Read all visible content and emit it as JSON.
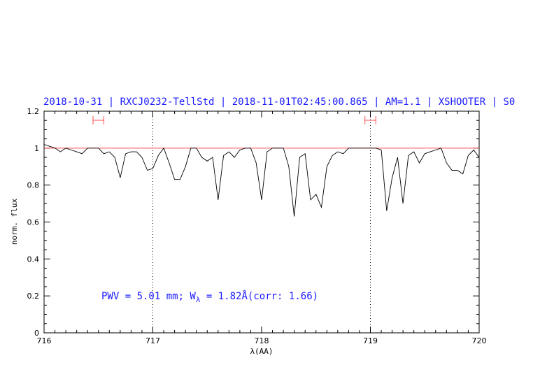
{
  "chart_data": {
    "type": "line",
    "title": "2018-10-31 | RXCJ0232-TellStd | 2018-11-01T02:45:00.865 | AM=1.1 | XSHOOTER | S0",
    "xlabel": "λ(AA)",
    "ylabel": "norm. flux",
    "xlim": [
      716,
      720
    ],
    "ylim": [
      0,
      1.2
    ],
    "xticks": [
      "716",
      "717",
      "718",
      "719",
      "720"
    ],
    "yticks": [
      "0",
      "0.2",
      "0.4",
      "0.6",
      "0.8",
      "1",
      "1.2"
    ],
    "grid": false,
    "reference_line": {
      "y": 1.0,
      "color": "#ff4d4d"
    },
    "vertical_dotted_lines": [
      717,
      719
    ],
    "continuum_windows": [
      [
        716.45,
        716.55
      ],
      [
        718.95,
        719.05
      ]
    ],
    "annotation": {
      "prefix": "PWV = 5.01 mm; W",
      "subscript": "λ",
      "suffix": " = 1.82Å(corr: 1.66)"
    },
    "series": [
      {
        "color": "#000000",
        "x": [
          716.0,
          716.05,
          716.1,
          716.15,
          716.2,
          716.25,
          716.3,
          716.35,
          716.4,
          716.45,
          716.5,
          716.55,
          716.6,
          716.65,
          716.7,
          716.75,
          716.8,
          716.85,
          716.9,
          716.95,
          717.0,
          717.05,
          717.1,
          717.15,
          717.2,
          717.25,
          717.3,
          717.35,
          717.4,
          717.45,
          717.5,
          717.55,
          717.6,
          717.65,
          717.7,
          717.75,
          717.8,
          717.85,
          717.9,
          717.95,
          718.0,
          718.05,
          718.1,
          718.15,
          718.2,
          718.25,
          718.3,
          718.35,
          718.4,
          718.45,
          718.5,
          718.55,
          718.6,
          718.65,
          718.7,
          718.75,
          718.8,
          718.85,
          718.9,
          718.95,
          719.0,
          719.05,
          719.1,
          719.15,
          719.2,
          719.25,
          719.3,
          719.35,
          719.4,
          719.45,
          719.5,
          719.55,
          719.6,
          719.65,
          719.7,
          719.75,
          719.8,
          719.85,
          719.9,
          719.95,
          720.0
        ],
        "y": [
          1.02,
          1.01,
          1.0,
          0.98,
          1.0,
          0.99,
          0.98,
          0.97,
          1.0,
          1.0,
          1.0,
          0.97,
          0.98,
          0.95,
          0.84,
          0.97,
          0.98,
          0.98,
          0.95,
          0.88,
          0.89,
          0.96,
          1.0,
          0.92,
          0.83,
          0.83,
          0.9,
          1.0,
          1.0,
          0.95,
          0.93,
          0.95,
          0.72,
          0.96,
          0.98,
          0.95,
          0.99,
          1.0,
          1.0,
          0.92,
          0.72,
          0.98,
          1.0,
          1.0,
          1.0,
          0.9,
          0.63,
          0.95,
          0.97,
          0.72,
          0.75,
          0.68,
          0.9,
          0.96,
          0.98,
          0.97,
          1.0,
          1.0,
          1.0,
          1.0,
          1.0,
          1.0,
          0.99,
          0.66,
          0.84,
          0.95,
          0.7,
          0.96,
          0.98,
          0.92,
          0.97,
          0.98,
          0.99,
          1.0,
          0.92,
          0.88,
          0.88,
          0.86,
          0.96,
          0.99,
          0.95
        ]
      }
    ]
  }
}
